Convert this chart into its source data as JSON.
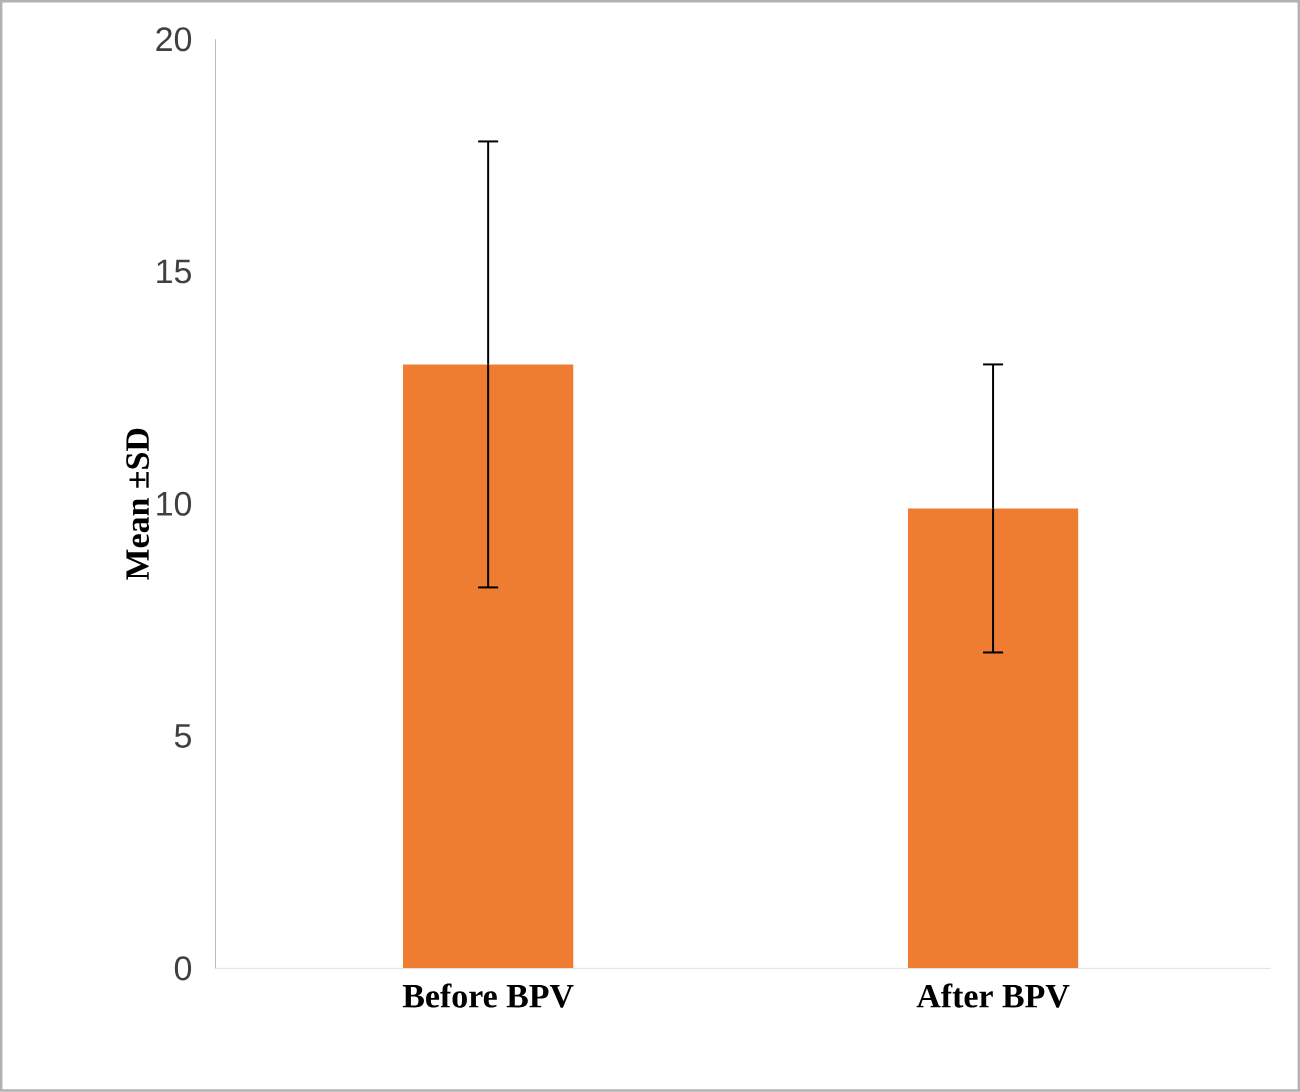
{
  "chart_data": {
    "type": "bar",
    "ylabel": "Mean ±SD",
    "categories": [
      "Before BPV",
      "After BPV"
    ],
    "values": [
      13.0,
      9.9
    ],
    "errors": [
      4.8,
      3.1
    ],
    "color": "#ee7d32",
    "ylim": [
      0,
      20
    ],
    "yticks": [
      0,
      5,
      10,
      15,
      20
    ],
    "grid": false
  }
}
